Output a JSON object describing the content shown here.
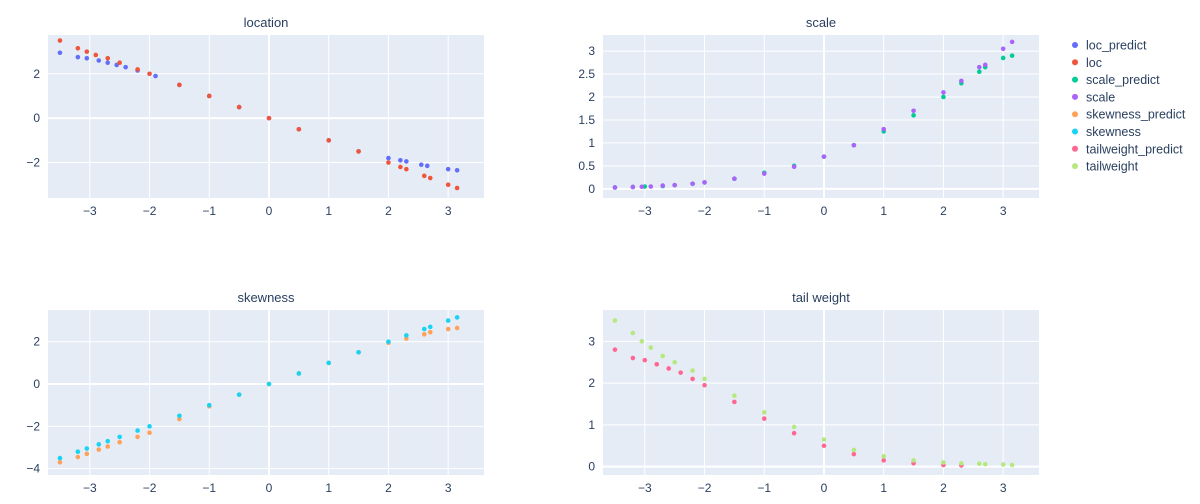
{
  "chart_data": [
    {
      "type": "scatter",
      "title": "location",
      "xlim": [
        -3.7,
        3.6
      ],
      "ylim": [
        -3.6,
        3.75
      ],
      "xticks": [
        -3,
        -2,
        -1,
        0,
        1,
        2,
        3
      ],
      "yticks": [
        -2,
        0,
        2
      ],
      "series": [
        {
          "name": "loc_predict",
          "color": "#636efa",
          "x": [
            -3.5,
            -3.2,
            -3.05,
            -2.85,
            -2.7,
            -2.55,
            -2.4,
            -2.2,
            -1.9,
            -1.5,
            -1.0,
            -0.5,
            0.0,
            0.5,
            1.0,
            1.5,
            2.0,
            2.2,
            2.3,
            2.55,
            2.65,
            3.0,
            3.15
          ],
          "y": [
            2.95,
            2.75,
            2.7,
            2.6,
            2.5,
            2.4,
            2.3,
            2.15,
            1.9,
            1.5,
            1.0,
            0.5,
            0.0,
            -0.5,
            -1.0,
            -1.5,
            -1.8,
            -1.9,
            -1.95,
            -2.1,
            -2.15,
            -2.3,
            -2.35
          ]
        },
        {
          "name": "loc",
          "color": "#ef553b",
          "x": [
            -3.5,
            -3.2,
            -3.05,
            -2.9,
            -2.7,
            -2.5,
            -2.2,
            -2.0,
            -1.5,
            -1.0,
            -0.5,
            0.0,
            0.5,
            1.0,
            1.5,
            2.0,
            2.2,
            2.3,
            2.6,
            2.7,
            3.0,
            3.15
          ],
          "y": [
            3.5,
            3.15,
            3.0,
            2.85,
            2.7,
            2.5,
            2.2,
            2.0,
            1.5,
            1.0,
            0.5,
            0.0,
            -0.5,
            -1.0,
            -1.5,
            -2.0,
            -2.2,
            -2.3,
            -2.6,
            -2.7,
            -3.0,
            -3.15
          ]
        }
      ]
    },
    {
      "type": "scatter",
      "title": "scale",
      "xlim": [
        -3.7,
        3.6
      ],
      "ylim": [
        -0.2,
        3.35
      ],
      "xticks": [
        -3,
        -2,
        -1,
        0,
        1,
        2,
        3
      ],
      "yticks": [
        0,
        0.5,
        1,
        1.5,
        2,
        2.5,
        3
      ],
      "series": [
        {
          "name": "scale_predict",
          "color": "#00cc96",
          "x": [
            -3.5,
            -3.2,
            -3.0,
            -2.7,
            -2.5,
            -2.2,
            -2.0,
            -1.5,
            -1.0,
            -0.5,
            0.0,
            0.5,
            1.0,
            1.5,
            2.0,
            2.3,
            2.6,
            2.7,
            3.0,
            3.15
          ],
          "y": [
            0.03,
            0.04,
            0.05,
            0.06,
            0.08,
            0.11,
            0.14,
            0.22,
            0.35,
            0.5,
            0.7,
            0.95,
            1.25,
            1.6,
            2.0,
            2.3,
            2.55,
            2.65,
            2.85,
            2.9
          ]
        },
        {
          "name": "scale",
          "color": "#ab63fa",
          "x": [
            -3.5,
            -3.2,
            -3.05,
            -2.9,
            -2.7,
            -2.5,
            -2.2,
            -2.0,
            -1.5,
            -1.0,
            -0.5,
            0.0,
            0.5,
            1.0,
            1.5,
            2.0,
            2.3,
            2.6,
            2.7,
            3.0,
            3.15
          ],
          "y": [
            0.03,
            0.04,
            0.045,
            0.05,
            0.07,
            0.08,
            0.11,
            0.14,
            0.22,
            0.33,
            0.48,
            0.7,
            0.95,
            1.3,
            1.7,
            2.1,
            2.35,
            2.65,
            2.7,
            3.05,
            3.2
          ]
        }
      ]
    },
    {
      "type": "scatter",
      "title": "skewness",
      "xlim": [
        -3.7,
        3.6
      ],
      "ylim": [
        -4.3,
        3.5
      ],
      "xticks": [
        -3,
        -2,
        -1,
        0,
        1,
        2,
        3
      ],
      "yticks": [
        -4,
        -2,
        0,
        2
      ],
      "series": [
        {
          "name": "skewness_predict",
          "color": "#ffa15a",
          "x": [
            -3.5,
            -3.2,
            -3.05,
            -2.85,
            -2.7,
            -2.5,
            -2.2,
            -2.0,
            -1.5,
            -1.0,
            -0.5,
            0.0,
            0.5,
            1.0,
            1.5,
            2.0,
            2.3,
            2.6,
            2.7,
            3.0,
            3.15
          ],
          "y": [
            -3.7,
            -3.45,
            -3.3,
            -3.1,
            -2.95,
            -2.75,
            -2.5,
            -2.3,
            -1.65,
            -1.05,
            -0.5,
            0.0,
            0.5,
            1.0,
            1.5,
            1.95,
            2.15,
            2.35,
            2.45,
            2.6,
            2.65
          ]
        },
        {
          "name": "skewness",
          "color": "#19d3f3",
          "x": [
            -3.5,
            -3.2,
            -3.05,
            -2.85,
            -2.7,
            -2.5,
            -2.2,
            -2.0,
            -1.5,
            -1.0,
            -0.5,
            0.0,
            0.5,
            1.0,
            1.5,
            2.0,
            2.3,
            2.6,
            2.7,
            3.0,
            3.15
          ],
          "y": [
            -3.5,
            -3.2,
            -3.05,
            -2.85,
            -2.7,
            -2.5,
            -2.2,
            -2.0,
            -1.5,
            -1.0,
            -0.5,
            0.0,
            0.5,
            1.0,
            1.5,
            2.0,
            2.3,
            2.6,
            2.7,
            3.0,
            3.15
          ]
        }
      ]
    },
    {
      "type": "scatter",
      "title": "tail weight",
      "xlim": [
        -3.7,
        3.6
      ],
      "ylim": [
        -0.2,
        3.75
      ],
      "xticks": [
        -3,
        -2,
        -1,
        0,
        1,
        2,
        3
      ],
      "yticks": [
        0,
        1,
        2,
        3
      ],
      "series": [
        {
          "name": "tailweight_predict",
          "color": "#ff6692",
          "x": [
            -3.5,
            -3.2,
            -3.0,
            -2.8,
            -2.6,
            -2.4,
            -2.2,
            -2.0,
            -1.5,
            -1.0,
            -0.5,
            0.0,
            0.5,
            1.0,
            1.5,
            2.0,
            2.3
          ],
          "y": [
            2.8,
            2.6,
            2.55,
            2.45,
            2.35,
            2.25,
            2.1,
            1.95,
            1.55,
            1.15,
            0.8,
            0.5,
            0.3,
            0.15,
            0.08,
            0.04,
            0.03
          ]
        },
        {
          "name": "tailweight",
          "color": "#b6e880",
          "x": [
            -3.5,
            -3.2,
            -3.05,
            -2.9,
            -2.7,
            -2.5,
            -2.2,
            -2.0,
            -1.5,
            -1.0,
            -0.5,
            0.0,
            0.5,
            1.0,
            1.5,
            2.0,
            2.3,
            2.6,
            2.7,
            3.0,
            3.15
          ],
          "y": [
            3.5,
            3.2,
            3.0,
            2.85,
            2.65,
            2.5,
            2.3,
            2.1,
            1.7,
            1.3,
            0.95,
            0.65,
            0.4,
            0.25,
            0.15,
            0.1,
            0.08,
            0.07,
            0.06,
            0.05,
            0.04
          ]
        }
      ]
    }
  ],
  "legend": {
    "items": [
      {
        "label": "loc_predict",
        "color": "#636efa"
      },
      {
        "label": "loc",
        "color": "#ef553b"
      },
      {
        "label": "scale_predict",
        "color": "#00cc96"
      },
      {
        "label": "scale",
        "color": "#ab63fa"
      },
      {
        "label": "skewness_predict",
        "color": "#ffa15a"
      },
      {
        "label": "skewness",
        "color": "#19d3f3"
      },
      {
        "label": "tailweight_predict",
        "color": "#ff6692"
      },
      {
        "label": "tailweight",
        "color": "#b6e880"
      }
    ],
    "placement": "top-right"
  },
  "colors": {
    "plot_bg": "#e5ecf6",
    "grid": "#ffffff",
    "text": "#2a3f5f"
  }
}
